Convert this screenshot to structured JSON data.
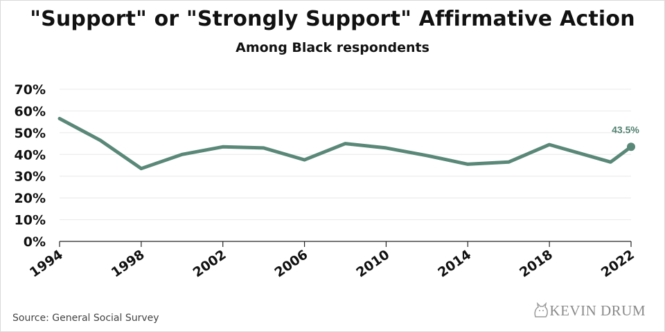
{
  "title": "\"Support\" or \"Strongly Support\" Affirmative Action",
  "subtitle": "Among Black respondents",
  "source": "Source: General Social Survey",
  "logo_text": "KEVIN DRUM",
  "colors": {
    "line": "#5a8878",
    "grid": "#e8e8e8",
    "axis": "#222222",
    "label": "#4f7f6f"
  },
  "chart_data": {
    "type": "line",
    "title": "\"Support\" or \"Strongly Support\" Affirmative Action",
    "subtitle": "Among Black respondents",
    "xlabel": "",
    "ylabel": "",
    "xlim": [
      1994,
      2022
    ],
    "ylim": [
      0,
      70
    ],
    "y_ticks": [
      0,
      10,
      20,
      30,
      40,
      50,
      60,
      70
    ],
    "y_tick_labels": [
      "0%",
      "10%",
      "20%",
      "30%",
      "40%",
      "50%",
      "60%",
      "70%"
    ],
    "x_ticks": [
      1994,
      1998,
      2002,
      2006,
      2010,
      2014,
      2018,
      2022
    ],
    "x_tick_labels": [
      "1994",
      "1998",
      "2002",
      "2006",
      "2010",
      "2014",
      "2018",
      "2022"
    ],
    "grid": true,
    "series": [
      {
        "x": [
          1994,
          1996,
          1998,
          2000,
          2002,
          2004,
          2006,
          2008,
          2010,
          2012,
          2014,
          2016,
          2018,
          2021,
          2022
        ],
        "values": [
          56.5,
          46.5,
          33.5,
          40,
          43.5,
          43,
          37.5,
          45,
          43,
          39.5,
          35.5,
          36.5,
          44.5,
          36.5,
          43.5
        ]
      }
    ],
    "annotations": [
      {
        "x": 2022,
        "y": 43.5,
        "text": "43.5%"
      }
    ]
  }
}
